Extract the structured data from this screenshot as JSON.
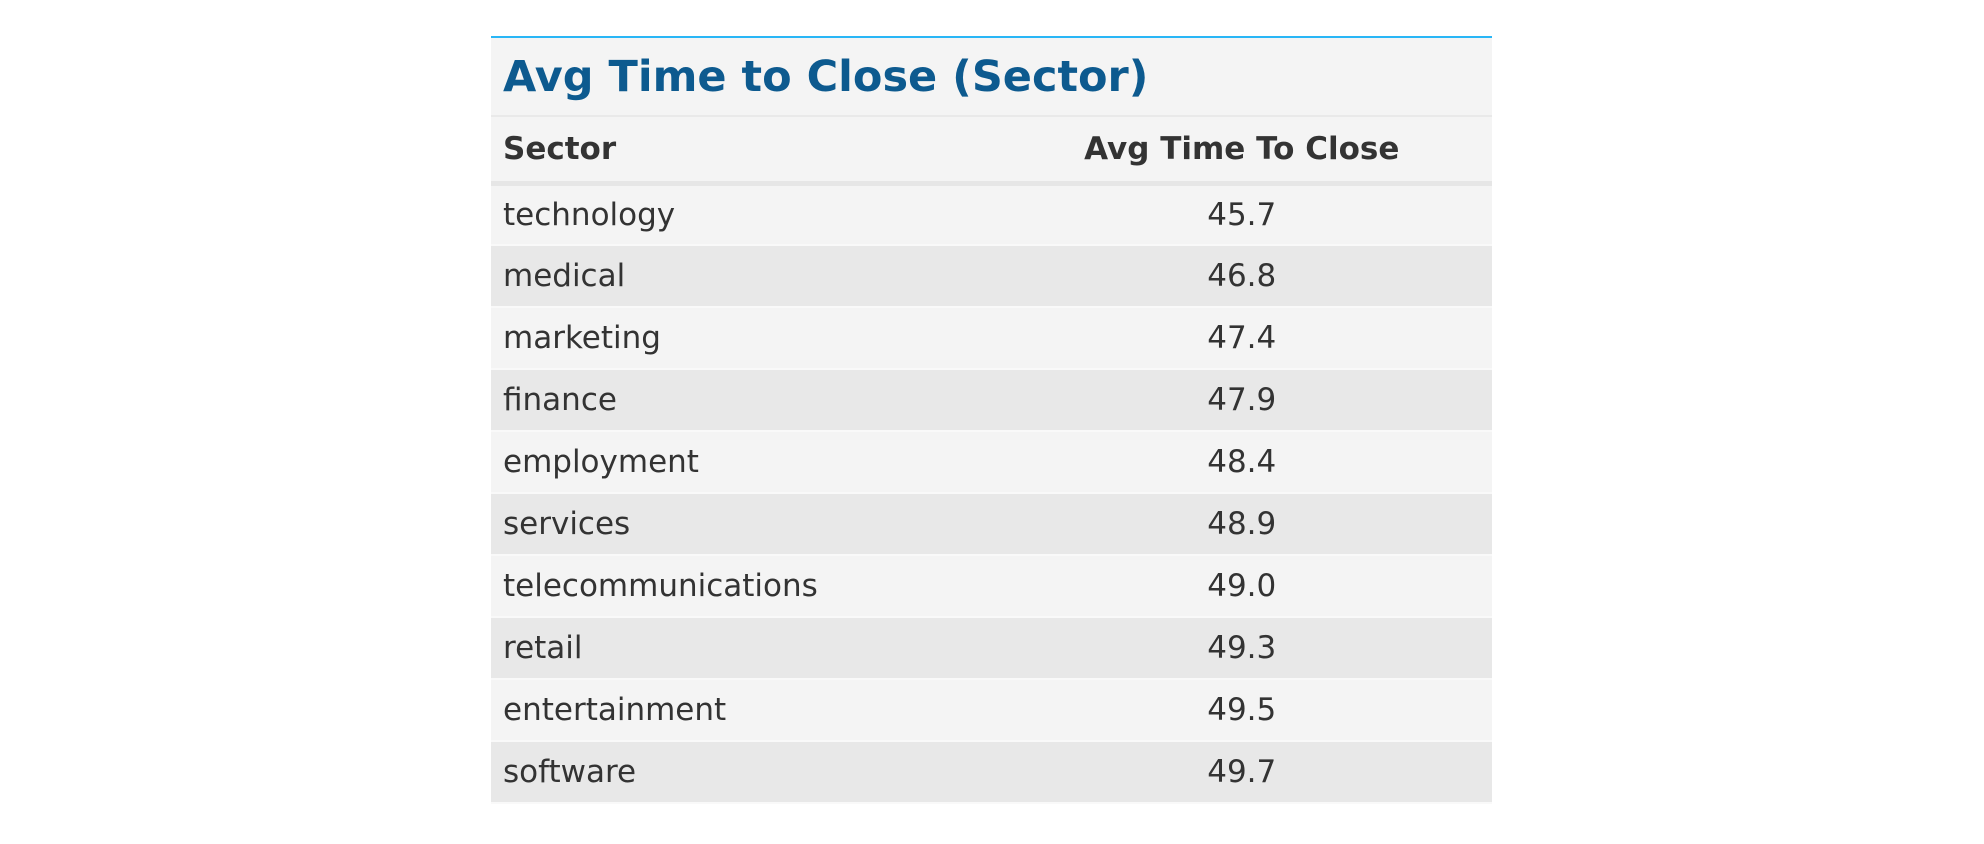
{
  "chart_data": {
    "type": "table",
    "title": "Avg Time to Close (Sector)",
    "columns": [
      "Sector",
      "Avg Time To Close"
    ],
    "rows": [
      {
        "sector": "technology",
        "value": "45.7"
      },
      {
        "sector": "medical",
        "value": "46.8"
      },
      {
        "sector": "marketing",
        "value": "47.4"
      },
      {
        "sector": "finance",
        "value": "47.9"
      },
      {
        "sector": "employment",
        "value": "48.4"
      },
      {
        "sector": "services",
        "value": "48.9"
      },
      {
        "sector": "telecommunications",
        "value": "49.0"
      },
      {
        "sector": "retail",
        "value": "49.3"
      },
      {
        "sector": "entertainment",
        "value": "49.5"
      },
      {
        "sector": "software",
        "value": "49.7"
      }
    ]
  },
  "colors": {
    "title": "#0d5a8f",
    "accent_border": "#29b6f6",
    "row_odd": "#f4f4f4",
    "row_even": "#e8e8e8",
    "text": "#333333"
  }
}
